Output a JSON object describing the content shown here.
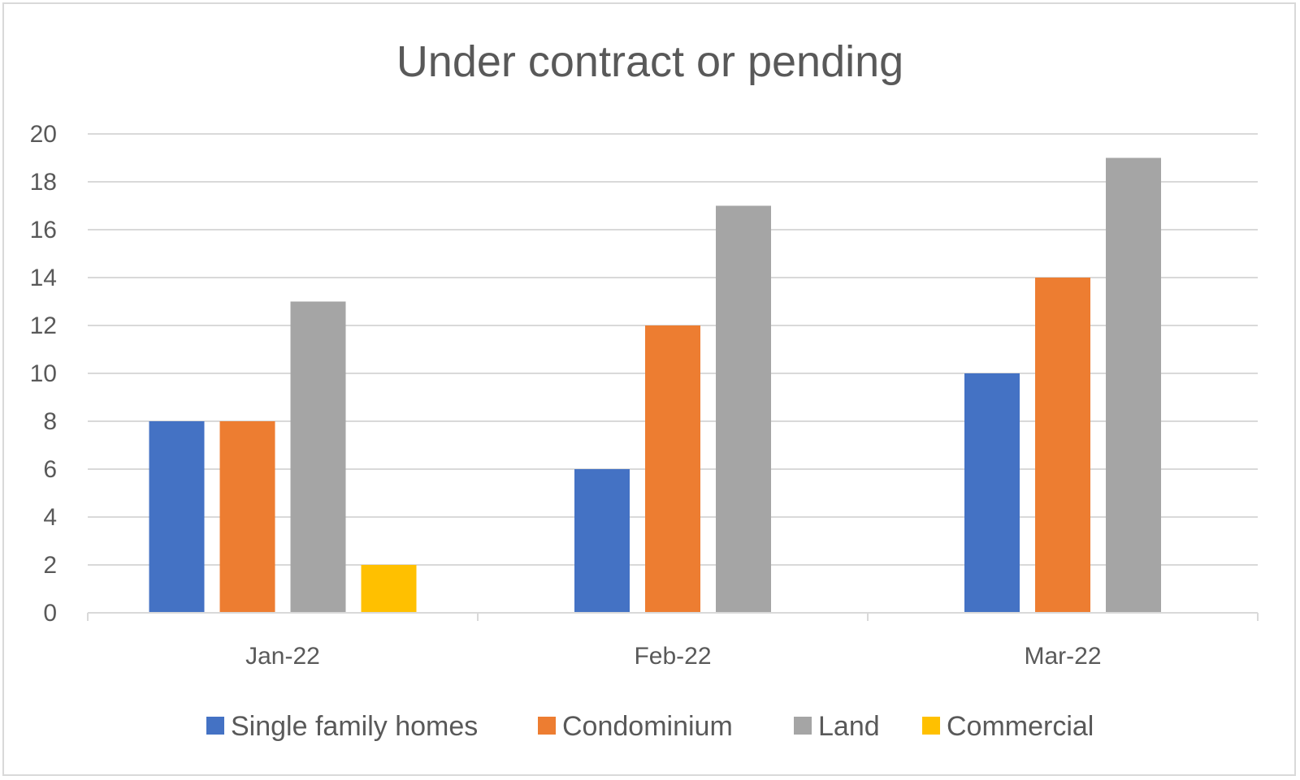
{
  "chart_data": {
    "type": "bar",
    "title": "Under contract or pending",
    "xlabel": "",
    "ylabel": "",
    "categories": [
      "Jan-22",
      "Feb-22",
      "Mar-22"
    ],
    "series": [
      {
        "name": "Single family homes",
        "color": "#4472C4",
        "values": [
          8,
          6,
          10
        ]
      },
      {
        "name": "Condominium",
        "color": "#ED7D31",
        "values": [
          8,
          12,
          14
        ]
      },
      {
        "name": "Land",
        "color": "#A5A5A5",
        "values": [
          13,
          17,
          19
        ]
      },
      {
        "name": "Commercial",
        "color": "#FFC000",
        "values": [
          2,
          0,
          0
        ]
      }
    ],
    "ylim": [
      0,
      20
    ],
    "yticks": [
      "0",
      "2",
      "4",
      "6",
      "8",
      "10",
      "12",
      "14",
      "16",
      "18",
      "20"
    ],
    "grid": true,
    "legend_position": "bottom"
  }
}
